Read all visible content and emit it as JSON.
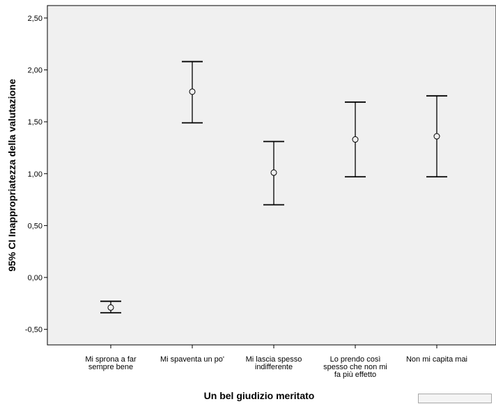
{
  "chart_data": {
    "type": "errorbar",
    "title": "",
    "xlabel": "Un bel giudizio meritato",
    "ylabel": "95% CI Inappropriatezza della valutazione",
    "ylim": [
      -0.65,
      2.62
    ],
    "yticks": [
      "-0,50",
      "0,00",
      "0,50",
      "1,00",
      "1,50",
      "2,00",
      "2,50"
    ],
    "ytick_values": [
      -0.5,
      0.0,
      0.5,
      1.0,
      1.5,
      2.0,
      2.5
    ],
    "categories": [
      [
        "Mi sprona a far",
        "sempre bene"
      ],
      [
        "Mi spaventa un po'"
      ],
      [
        "Mi lascia spesso",
        "indifferente"
      ],
      [
        "Lo prendo così",
        "spesso che non mi",
        "fa più effetto"
      ],
      [
        "Non mi capita mai"
      ]
    ],
    "means": [
      -0.29,
      1.79,
      1.01,
      1.33,
      1.36
    ],
    "lower": [
      -0.34,
      1.49,
      0.7,
      0.97,
      0.97
    ],
    "upper": [
      -0.23,
      2.08,
      1.31,
      1.69,
      1.75
    ],
    "grid": false,
    "legend": "none",
    "colors": {
      "plot_background": "#f0f0f0",
      "frame": "#000000",
      "marks": "#000000"
    }
  }
}
